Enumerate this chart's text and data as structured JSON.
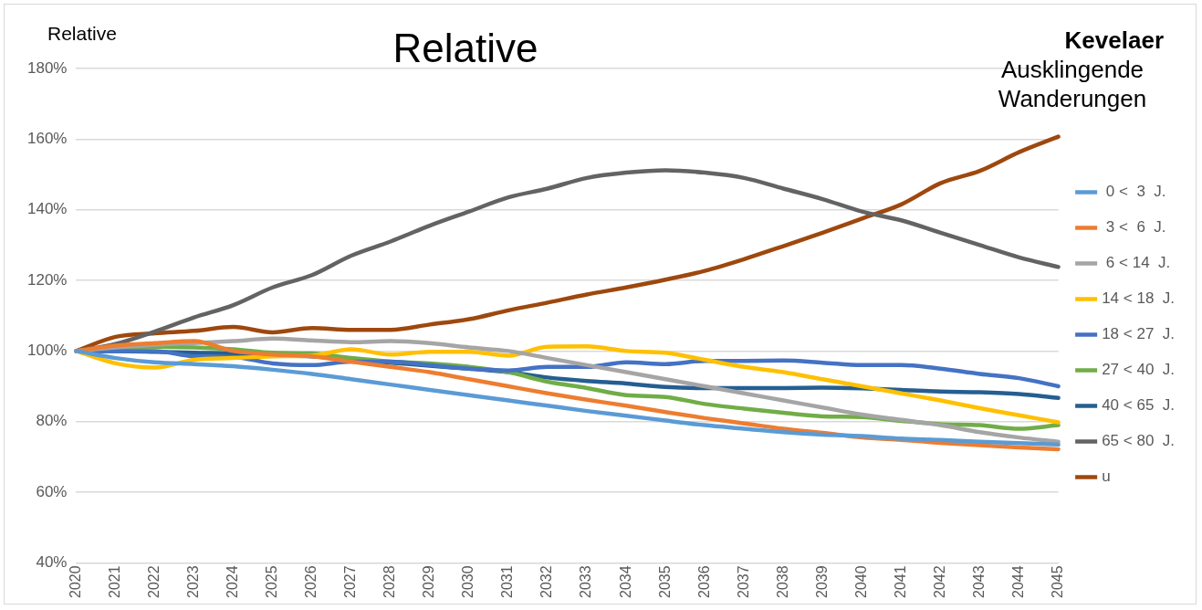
{
  "chart_data": {
    "type": "line",
    "title": "Relative",
    "ylabel": "Relative",
    "annotations": [
      "Kevelaer",
      "Ausklingende Wanderungen"
    ],
    "categories": [
      "2020",
      "2021",
      "2022",
      "2023",
      "2024",
      "2025",
      "2026",
      "2027",
      "2028",
      "2029",
      "2030",
      "2031",
      "2032",
      "2033",
      "2034",
      "2035",
      "2036",
      "2037",
      "2038",
      "2039",
      "2040",
      "2041",
      "2042",
      "2043",
      "2044",
      "2045"
    ],
    "ylim": [
      40,
      180
    ],
    "yticks": [
      {
        "value": 40,
        "label": "40%"
      },
      {
        "value": 60,
        "label": "60%"
      },
      {
        "value": 80,
        "label": "80%"
      },
      {
        "value": 100,
        "label": "100%"
      },
      {
        "value": 120,
        "label": "120%"
      },
      {
        "value": 140,
        "label": "140%"
      },
      {
        "value": 160,
        "label": "160%"
      },
      {
        "value": 180,
        "label": "180%"
      }
    ],
    "grid": "y",
    "legend": "right",
    "marker": "none",
    "line_style": "solid",
    "series": [
      {
        "name": " 0 <  3  J.",
        "color": "#5b9bd5",
        "values": [
          100,
          98,
          96.8,
          96.3,
          95.7,
          94.7,
          93.5,
          92,
          90.5,
          89,
          87.5,
          86,
          84.5,
          83,
          81.7,
          80.3,
          79,
          78,
          77,
          76.3,
          75.9,
          75.2,
          74.8,
          74.3,
          73.9,
          73.5
        ]
      },
      {
        "name": " 3 <  6  J.",
        "color": "#ed7d31",
        "values": [
          100,
          101.5,
          102.2,
          102.8,
          100,
          99,
          98.5,
          97,
          95.5,
          94,
          92,
          90,
          88,
          86.2,
          84.5,
          82.7,
          81,
          79.5,
          78,
          76.8,
          75.5,
          74.8,
          74,
          73.3,
          72.7,
          72.2
        ]
      },
      {
        "name": " 6 < 14  J.",
        "color": "#a5a5a5",
        "values": [
          100,
          101,
          101.8,
          102.2,
          102.8,
          103.5,
          103,
          102.5,
          102.8,
          102.2,
          101,
          100,
          98,
          96,
          94,
          92,
          90,
          88,
          86,
          84,
          82,
          80.5,
          79,
          77,
          75.5,
          74.3
        ]
      },
      {
        "name": "14 < 18  J.",
        "color": "#ffc000",
        "values": [
          100,
          96.5,
          95.3,
          97.5,
          98,
          98.5,
          98.7,
          100.5,
          99,
          99.8,
          99.8,
          98.7,
          101.2,
          101.3,
          100,
          99.5,
          97.5,
          95.5,
          94,
          92,
          90,
          88,
          86,
          83.8,
          81.8,
          79.8
        ]
      },
      {
        "name": "18 < 27  J.",
        "color": "#4472c4",
        "values": [
          100,
          100,
          100,
          98.5,
          98.3,
          96.5,
          96,
          97,
          97,
          96,
          95,
          94.5,
          95.5,
          95.5,
          96.8,
          96.3,
          97.2,
          97.2,
          97.3,
          96.7,
          96,
          96,
          95,
          93.5,
          92.3,
          90
        ]
      },
      {
        "name": "27 < 40  J.",
        "color": "#70ad47",
        "values": [
          100,
          101,
          101.2,
          101,
          100.5,
          99.5,
          99.3,
          98,
          97,
          96.5,
          95.5,
          94,
          91.3,
          89.5,
          87.5,
          87,
          85,
          83.7,
          82.5,
          81.5,
          81.3,
          80.2,
          79.3,
          79,
          78,
          79
        ]
      },
      {
        "name": "40 < 65  J.",
        "color": "#255e91",
        "values": [
          100,
          100,
          99.8,
          99.5,
          99.3,
          98.8,
          98.5,
          97.5,
          96.7,
          95.8,
          95,
          94,
          92.5,
          91.5,
          90.8,
          89.8,
          89.5,
          89.5,
          89.5,
          89.6,
          89.4,
          89,
          88.5,
          88.3,
          87.8,
          86.7
        ]
      },
      {
        "name": "65 < 80  J.",
        "color": "#636363",
        "values": [
          100,
          102,
          105.5,
          109.5,
          113,
          118,
          121.5,
          127,
          131,
          135.5,
          139.5,
          143.5,
          146,
          149,
          150.5,
          151.2,
          150.5,
          149,
          146,
          143,
          139.5,
          137,
          133.5,
          130,
          126.5,
          123.8
        ]
      },
      {
        "name": "u",
        "color": "#9e480e",
        "values": [
          100,
          104,
          105,
          105.7,
          106.8,
          105.3,
          106.5,
          106,
          106,
          107.5,
          109,
          111.5,
          113.7,
          116,
          118,
          120.2,
          122.7,
          126,
          129.7,
          133.5,
          137.5,
          141.5,
          147.5,
          151,
          156.3,
          160.7
        ]
      }
    ]
  }
}
